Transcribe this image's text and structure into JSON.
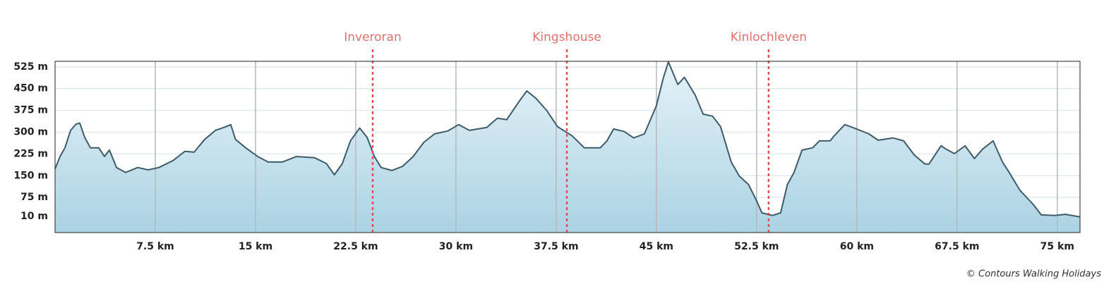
{
  "chart_data": {
    "type": "area",
    "x": [
      0,
      0.37,
      0.74,
      1.16,
      1.58,
      1.85,
      2.22,
      2.64,
      3.27,
      3.7,
      4.07,
      4.6,
      5.28,
      6.18,
      6.97,
      7.77,
      8.82,
      9.72,
      10.4,
      11.2,
      12.0,
      12.8,
      13.15,
      13.5,
      14.26,
      15.16,
      15.95,
      17.0,
      18.07,
      19.4,
      20.3,
      20.9,
      21.5,
      22.1,
      22.8,
      23.35,
      23.9,
      24.4,
      25.2,
      26.0,
      26.8,
      27.6,
      28.4,
      29.4,
      30.2,
      31.0,
      32.3,
      33.1,
      33.8,
      34.7,
      35.3,
      36.0,
      36.8,
      37.6,
      38.7,
      39.6,
      40.8,
      41.3,
      41.8,
      42.6,
      43.3,
      44.1,
      45.0,
      45.5,
      45.9,
      46.6,
      47.1,
      47.9,
      48.5,
      49.2,
      49.8,
      50.6,
      51.2,
      51.9,
      52.5,
      52.9,
      53.7,
      54.3,
      54.8,
      55.3,
      55.9,
      56.7,
      57.2,
      58.0,
      58.3,
      59.1,
      59.8,
      60.9,
      61.6,
      62.7,
      63.5,
      64.3,
      65.1,
      65.4,
      66.3,
      66.7,
      67.3,
      68.1,
      68.8,
      69.4,
      70.2,
      70.9,
      71.4,
      72.2,
      73.2,
      73.8,
      74.8,
      75.6,
      76.7
    ],
    "values": [
      173,
      216,
      246,
      306,
      328,
      331,
      282,
      246,
      246,
      216,
      238,
      178,
      161,
      178,
      170,
      178,
      202,
      234,
      231,
      275,
      306,
      319,
      326,
      275,
      246,
      216,
      197,
      197,
      216,
      212,
      192,
      153,
      192,
      270,
      314,
      282,
      216,
      178,
      168,
      182,
      216,
      265,
      294,
      304,
      326,
      306,
      316,
      348,
      343,
      404,
      442,
      416,
      374,
      319,
      287,
      246,
      246,
      270,
      311,
      302,
      280,
      294,
      391,
      484,
      542,
      464,
      489,
      428,
      362,
      355,
      319,
      197,
      149,
      119,
      63,
      22,
      13,
      22,
      119,
      161,
      238,
      246,
      270,
      270,
      287,
      326,
      314,
      294,
      272,
      280,
      270,
      221,
      190,
      190,
      253,
      241,
      226,
      253,
      209,
      241,
      270,
      197,
      161,
      100,
      51,
      15,
      13,
      17,
      8
    ],
    "xlim": [
      0,
      76.7
    ],
    "ylim": [
      -46,
      544
    ],
    "xticks": [
      {
        "value": 7.5,
        "label": "7.5 km"
      },
      {
        "value": 15,
        "label": "15 km"
      },
      {
        "value": 22.5,
        "label": "22.5 km"
      },
      {
        "value": 30,
        "label": "30 km"
      },
      {
        "value": 37.5,
        "label": "37.5 km"
      },
      {
        "value": 45,
        "label": "45 km"
      },
      {
        "value": 52.5,
        "label": "52.5 km"
      },
      {
        "value": 60,
        "label": "60 km"
      },
      {
        "value": 67.5,
        "label": "67.5 km"
      },
      {
        "value": 75,
        "label": "75 km"
      }
    ],
    "yticks": [
      {
        "value": 10,
        "label": "10 m"
      },
      {
        "value": 75,
        "label": "75 m"
      },
      {
        "value": 150,
        "label": "150 m"
      },
      {
        "value": 225,
        "label": "225 m"
      },
      {
        "value": 300,
        "label": "300 m"
      },
      {
        "value": 375,
        "label": "375 m"
      },
      {
        "value": 450,
        "label": "450 m"
      },
      {
        "value": 525,
        "label": "525 m"
      }
    ],
    "markers": [
      {
        "label": "Inveroran",
        "x": 23.77
      },
      {
        "label": "Kingshouse",
        "x": 38.3
      },
      {
        "label": "Kinlochleven",
        "x": 53.4
      }
    ],
    "color": "#3e5c68",
    "marker_color": "#d9505a",
    "grid": true,
    "credit": "© Contours Walking Holidays"
  }
}
